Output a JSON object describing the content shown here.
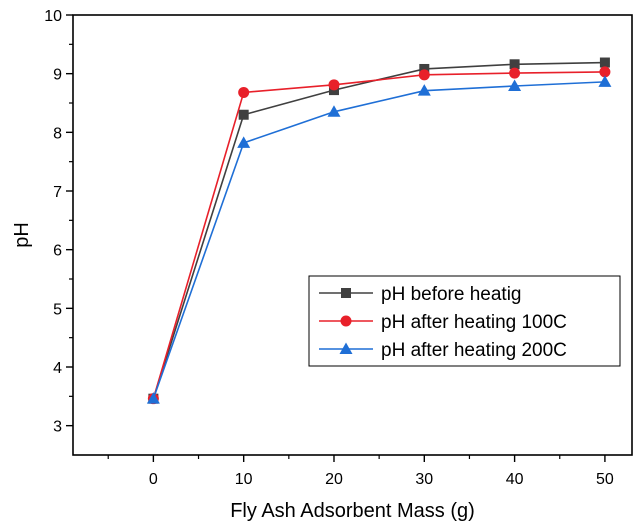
{
  "chart_data": {
    "type": "line",
    "title": "",
    "xlabel": "Fly Ash Adsorbent Mass (g)",
    "ylabel": "pH",
    "xlim": [
      -8.9,
      53
    ],
    "ylim": [
      2.5,
      10
    ],
    "x": [
      0,
      10,
      20,
      30,
      40,
      50
    ],
    "x_ticks": [
      "0",
      "10",
      "20",
      "30",
      "40",
      "50"
    ],
    "y_ticks": [
      "3",
      "4",
      "5",
      "6",
      "7",
      "8",
      "9",
      "10"
    ],
    "grid": false,
    "legend_position": "lower-right",
    "series": [
      {
        "name": "pH before heatig",
        "values": [
          3.46,
          8.3,
          8.72,
          9.08,
          9.16,
          9.19
        ],
        "color": "#404040",
        "marker": "square"
      },
      {
        "name": "pH after heating 100C",
        "values": [
          3.46,
          8.68,
          8.81,
          8.98,
          9.01,
          9.03
        ],
        "color": "#e8202a",
        "marker": "circle"
      },
      {
        "name": "pH after heating 200C",
        "values": [
          3.46,
          7.82,
          8.35,
          8.71,
          8.79,
          8.86
        ],
        "color": "#1f6fd6",
        "marker": "triangle"
      }
    ]
  }
}
